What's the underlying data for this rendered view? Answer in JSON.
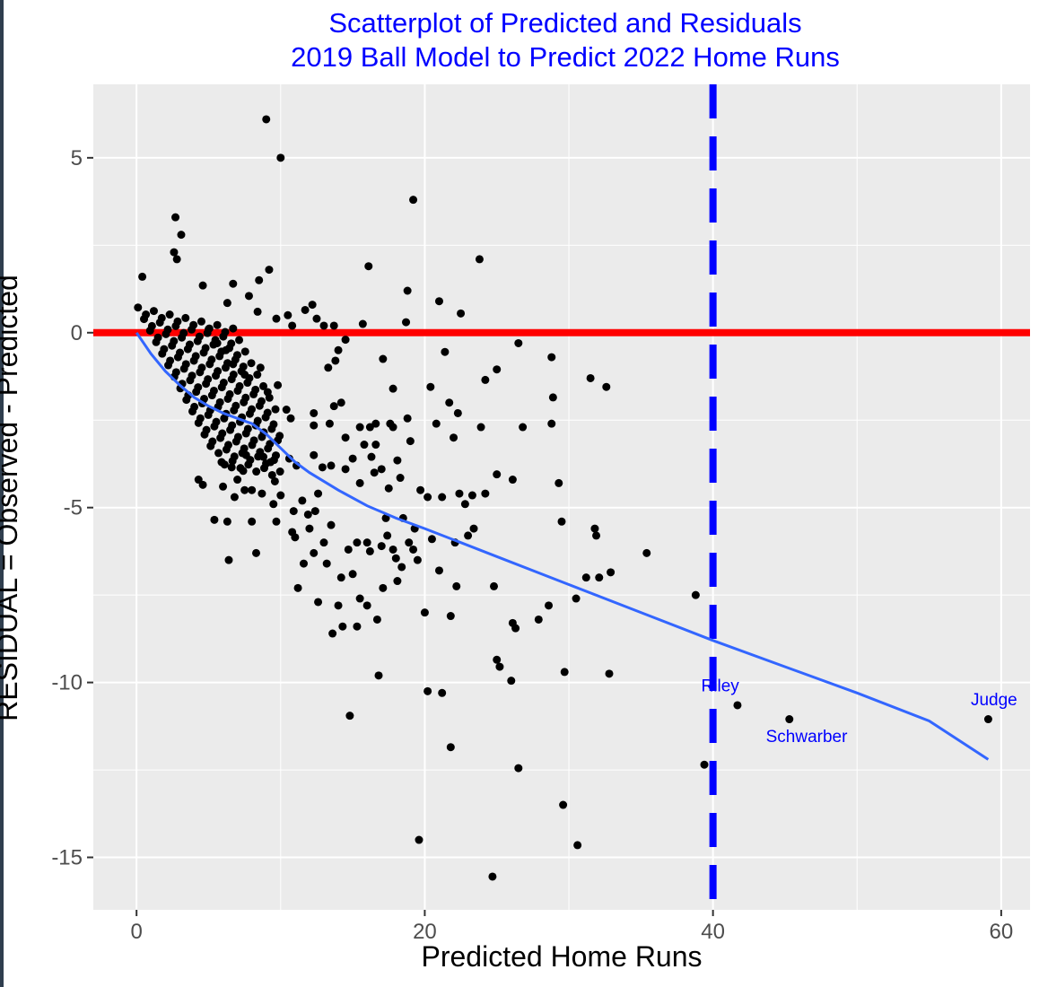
{
  "chart_data": {
    "type": "scatter",
    "title_line1": "Scatterplot of Predicted and Residuals",
    "title_line2": "2019 Ball Model to Predict 2022 Home Runs",
    "xlabel": "Predicted Home Runs",
    "ylabel": "RESIDUAL = Observed - Predicted",
    "xlim": [
      -3,
      62
    ],
    "ylim": [
      -16.5,
      7.1
    ],
    "x_ticks": [
      0,
      20,
      40,
      60
    ],
    "y_ticks": [
      5,
      0,
      -5,
      -10,
      -15
    ],
    "grid": true,
    "colors": {
      "panel": "#ebebeb",
      "grid": "#ffffff",
      "points": "#000000",
      "zero_line": "#ff0000",
      "threshold_line": "#0000ff",
      "smooth": "#3366ff",
      "labels": "#0000ff",
      "title": "#0000ff"
    },
    "reference_lines": {
      "horizontal_y": 0,
      "vertical_x": 40
    },
    "smooth_line": [
      [
        0,
        0
      ],
      [
        1,
        -0.6
      ],
      [
        2,
        -1.1
      ],
      [
        3,
        -1.5
      ],
      [
        4,
        -1.85
      ],
      [
        5,
        -2.1
      ],
      [
        6,
        -2.3
      ],
      [
        7,
        -2.45
      ],
      [
        8,
        -2.6
      ],
      [
        9,
        -2.9
      ],
      [
        10,
        -3.3
      ],
      [
        11,
        -3.7
      ],
      [
        12,
        -4.0
      ],
      [
        14,
        -4.5
      ],
      [
        16,
        -4.95
      ],
      [
        18,
        -5.3
      ],
      [
        20,
        -5.6
      ],
      [
        25,
        -6.4
      ],
      [
        30,
        -7.2
      ],
      [
        35,
        -8.0
      ],
      [
        40,
        -8.8
      ],
      [
        45,
        -9.55
      ],
      [
        50,
        -10.3
      ],
      [
        55,
        -11.1
      ],
      [
        59.1,
        -12.2
      ]
    ],
    "annotations": [
      {
        "text": "Riley",
        "x": 40.5,
        "y": -10.25
      },
      {
        "text": "Schwarber",
        "x": 46.5,
        "y": -11.7
      },
      {
        "text": "Judge",
        "x": 59.5,
        "y": -10.65
      }
    ],
    "points": [
      [
        9,
        6.1
      ],
      [
        10,
        5.0
      ],
      [
        19.2,
        3.8
      ],
      [
        2.7,
        3.3
      ],
      [
        3.1,
        2.8
      ],
      [
        2.6,
        2.3
      ],
      [
        2.8,
        2.1
      ],
      [
        23.8,
        2.1
      ],
      [
        16.1,
        1.9
      ],
      [
        9.2,
        1.8
      ],
      [
        8.5,
        1.5
      ],
      [
        0.4,
        1.6
      ],
      [
        18.8,
        1.2
      ],
      [
        21.0,
        0.9
      ],
      [
        22.5,
        0.55
      ],
      [
        18.7,
        0.3
      ],
      [
        15.7,
        0.25
      ],
      [
        26.5,
        -0.3
      ],
      [
        21.4,
        -0.55
      ],
      [
        28.8,
        -0.7
      ],
      [
        17.1,
        -0.75
      ],
      [
        25.0,
        -1.05
      ],
      [
        24.2,
        -1.35
      ],
      [
        31.5,
        -1.3
      ],
      [
        32.6,
        -1.55
      ],
      [
        17.8,
        -1.6
      ],
      [
        20.4,
        -1.55
      ],
      [
        28.9,
        -1.85
      ],
      [
        21.7,
        -2.0
      ],
      [
        22.3,
        -2.3
      ],
      [
        18.8,
        -2.45
      ],
      [
        17.6,
        -2.6
      ],
      [
        20.8,
        -2.6
      ],
      [
        23.9,
        -2.7
      ],
      [
        26.8,
        -2.7
      ],
      [
        28.8,
        -2.6
      ],
      [
        22.0,
        -3.0
      ],
      [
        19.0,
        -3.1
      ],
      [
        24.2,
        -4.6
      ],
      [
        25.0,
        -4.05
      ],
      [
        26.1,
        -4.2
      ],
      [
        29.3,
        -4.3
      ],
      [
        20.2,
        -4.7
      ],
      [
        21.2,
        -4.7
      ],
      [
        22.4,
        -4.6
      ],
      [
        22.8,
        -4.9
      ],
      [
        23.3,
        -4.65
      ],
      [
        19.7,
        -4.5
      ],
      [
        29.5,
        -5.4
      ],
      [
        31.8,
        -5.6
      ],
      [
        31.9,
        -5.8
      ],
      [
        35.4,
        -6.3
      ],
      [
        32.9,
        -6.85
      ],
      [
        32.1,
        -7.0
      ],
      [
        30.5,
        -7.6
      ],
      [
        31.2,
        -7.0
      ],
      [
        38.8,
        -7.5
      ],
      [
        27.9,
        -8.2
      ],
      [
        28.6,
        -7.8
      ],
      [
        26.1,
        -8.3
      ],
      [
        26.3,
        -8.45
      ],
      [
        25.0,
        -9.35
      ],
      [
        25.2,
        -9.55
      ],
      [
        29.7,
        -9.7
      ],
      [
        32.8,
        -9.75
      ],
      [
        26.0,
        -9.95
      ],
      [
        20.2,
        -10.25
      ],
      [
        21.2,
        -10.3
      ],
      [
        16.8,
        -9.8
      ],
      [
        14.8,
        -10.95
      ],
      [
        21.8,
        -11.85
      ],
      [
        26.5,
        -12.45
      ],
      [
        29.6,
        -13.5
      ],
      [
        19.6,
        -14.5
      ],
      [
        30.6,
        -14.65
      ],
      [
        24.7,
        -15.55
      ],
      [
        39.4,
        -12.35
      ],
      [
        41.7,
        -10.65
      ],
      [
        45.3,
        -11.05
      ],
      [
        59.1,
        -11.05
      ],
      [
        17.3,
        -5.3
      ],
      [
        18.5,
        -5.3
      ],
      [
        19.3,
        -5.6
      ],
      [
        20.5,
        -5.9
      ],
      [
        21.0,
        -6.8
      ],
      [
        19.5,
        -6.5
      ],
      [
        18.4,
        -6.7
      ],
      [
        18.1,
        -7.1
      ],
      [
        17.1,
        -7.3
      ],
      [
        16.0,
        -7.8
      ],
      [
        15.5,
        -7.6
      ],
      [
        14.0,
        -7.8
      ],
      [
        13.6,
        -8.6
      ],
      [
        14.3,
        -8.4
      ],
      [
        15.3,
        -8.4
      ],
      [
        16.7,
        -8.2
      ],
      [
        12.6,
        -7.7
      ],
      [
        11.2,
        -7.3
      ],
      [
        13.2,
        -6.6
      ],
      [
        12.3,
        -6.3
      ],
      [
        11.6,
        -6.6
      ],
      [
        8.3,
        -6.3
      ],
      [
        6.4,
        -6.5
      ],
      [
        5.4,
        -5.35
      ],
      [
        6.3,
        -5.4
      ],
      [
        8.0,
        -5.4
      ],
      [
        9.7,
        -5.4
      ],
      [
        10.8,
        -5.7
      ],
      [
        11.0,
        -5.85
      ],
      [
        13.5,
        -5.5
      ],
      [
        14.7,
        -6.2
      ],
      [
        15.3,
        -6.0
      ],
      [
        16.0,
        -6.0
      ],
      [
        17.0,
        -6.1
      ],
      [
        17.8,
        -6.2
      ],
      [
        18.9,
        -6.0
      ],
      [
        22.1,
        -6.0
      ],
      [
        23.4,
        -5.6
      ],
      [
        23.0,
        -5.8
      ],
      [
        22.2,
        -7.25
      ],
      [
        21.8,
        -8.1
      ],
      [
        24.8,
        -7.25
      ],
      [
        20.0,
        -8.0
      ],
      [
        15.0,
        -6.9
      ],
      [
        13.0,
        -6.0
      ],
      [
        12.4,
        -5.1
      ],
      [
        11.5,
        -4.8
      ],
      [
        10.0,
        -4.65
      ],
      [
        9.6,
        -4.25
      ],
      [
        8.7,
        -4.6
      ],
      [
        7.5,
        -4.5
      ],
      [
        6.8,
        -4.7
      ],
      [
        6.0,
        -4.4
      ],
      [
        4.3,
        -4.2
      ],
      [
        4.6,
        -4.35
      ],
      [
        5.9,
        -3.7
      ],
      [
        6.6,
        -3.85
      ],
      [
        7.4,
        -3.95
      ],
      [
        7.6,
        -3.5
      ],
      [
        8.8,
        -3.55
      ],
      [
        9.3,
        -3.7
      ],
      [
        10.6,
        -3.6
      ],
      [
        11.1,
        -3.8
      ],
      [
        12.3,
        -3.5
      ],
      [
        12.9,
        -3.85
      ],
      [
        13.5,
        -3.8
      ],
      [
        14.5,
        -3.9
      ],
      [
        15.5,
        -4.3
      ],
      [
        16.5,
        -4.0
      ],
      [
        17.5,
        -4.45
      ],
      [
        18.3,
        -4.15
      ],
      [
        18.1,
        -3.65
      ],
      [
        16.6,
        -3.2
      ],
      [
        16.2,
        -2.7
      ],
      [
        15.5,
        -2.7
      ],
      [
        14.5,
        -3.0
      ],
      [
        13.4,
        -2.6
      ],
      [
        12.3,
        -2.65
      ],
      [
        12.3,
        -2.3
      ],
      [
        13.7,
        -2.1
      ],
      [
        14.2,
        -2.0
      ],
      [
        10.7,
        -2.45
      ],
      [
        10.4,
        -2.2
      ],
      [
        9.8,
        -1.5
      ],
      [
        9.1,
        -1.7
      ],
      [
        8.6,
        -1.0
      ],
      [
        7.5,
        -1.2
      ],
      [
        6.7,
        -0.9
      ],
      [
        6.2,
        -0.5
      ],
      [
        5.6,
        -0.3
      ],
      [
        5.0,
        0.1
      ],
      [
        4.6,
        1.35
      ],
      [
        6.3,
        0.85
      ],
      [
        6.7,
        1.4
      ],
      [
        7.8,
        1.05
      ],
      [
        8.4,
        0.6
      ],
      [
        9.7,
        0.4
      ],
      [
        10.5,
        0.5
      ],
      [
        10.8,
        0.2
      ],
      [
        11.7,
        0.65
      ],
      [
        12.2,
        0.8
      ],
      [
        12.5,
        0.4
      ],
      [
        13.0,
        0.2
      ],
      [
        13.7,
        0.2
      ],
      [
        14.0,
        -0.5
      ],
      [
        14.5,
        -0.2
      ],
      [
        13.3,
        -1.0
      ],
      [
        13.8,
        -0.8
      ],
      [
        16.6,
        -2.6
      ],
      [
        17.0,
        -3.9
      ],
      [
        15.8,
        -3.2
      ],
      [
        15.0,
        -3.6
      ],
      [
        16.3,
        -3.55
      ],
      [
        17.8,
        -2.7
      ],
      [
        19.2,
        -6.2
      ],
      [
        18.0,
        -6.45
      ],
      [
        16.2,
        -6.25
      ],
      [
        14.2,
        -7.0
      ],
      [
        17.4,
        -5.8
      ],
      [
        12.6,
        -4.6
      ],
      [
        11.9,
        -5.2
      ],
      [
        10.9,
        -5.1
      ],
      [
        9.5,
        -4.9
      ],
      [
        8.0,
        -4.5
      ],
      [
        7.0,
        -4.2
      ],
      [
        12.0,
        -5.6
      ]
    ]
  }
}
